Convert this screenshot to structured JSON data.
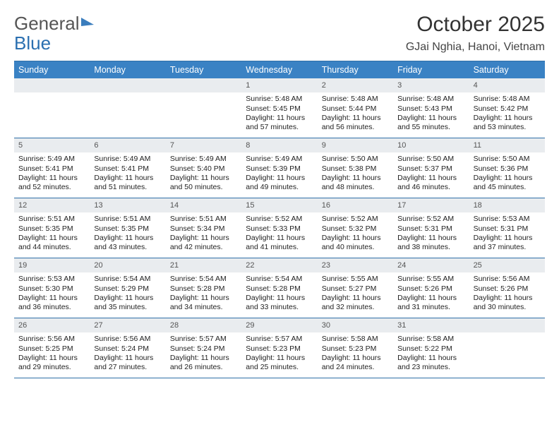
{
  "logo": {
    "text1": "General",
    "text2": "Blue"
  },
  "title": "October 2025",
  "location": "GJai Nghia, Hanoi, Vietnam",
  "colors": {
    "header_bar": "#3a82c4",
    "rule": "#2f6fa8",
    "daynum_bg": "#e9ecef",
    "text": "#222222",
    "logo_gray": "#555555",
    "logo_blue": "#2a6fb0"
  },
  "fonts": {
    "body_pt": 10.5,
    "header_pt": 12.5,
    "title_pt": 30,
    "location_pt": 16
  },
  "day_headers": [
    "Sunday",
    "Monday",
    "Tuesday",
    "Wednesday",
    "Thursday",
    "Friday",
    "Saturday"
  ],
  "weeks": [
    [
      {
        "day": "",
        "empty": true
      },
      {
        "day": "",
        "empty": true
      },
      {
        "day": "",
        "empty": true
      },
      {
        "day": "1",
        "sunrise": "Sunrise: 5:48 AM",
        "sunset": "Sunset: 5:45 PM",
        "daylight": "Daylight: 11 hours and 57 minutes."
      },
      {
        "day": "2",
        "sunrise": "Sunrise: 5:48 AM",
        "sunset": "Sunset: 5:44 PM",
        "daylight": "Daylight: 11 hours and 56 minutes."
      },
      {
        "day": "3",
        "sunrise": "Sunrise: 5:48 AM",
        "sunset": "Sunset: 5:43 PM",
        "daylight": "Daylight: 11 hours and 55 minutes."
      },
      {
        "day": "4",
        "sunrise": "Sunrise: 5:48 AM",
        "sunset": "Sunset: 5:42 PM",
        "daylight": "Daylight: 11 hours and 53 minutes."
      }
    ],
    [
      {
        "day": "5",
        "sunrise": "Sunrise: 5:49 AM",
        "sunset": "Sunset: 5:41 PM",
        "daylight": "Daylight: 11 hours and 52 minutes."
      },
      {
        "day": "6",
        "sunrise": "Sunrise: 5:49 AM",
        "sunset": "Sunset: 5:41 PM",
        "daylight": "Daylight: 11 hours and 51 minutes."
      },
      {
        "day": "7",
        "sunrise": "Sunrise: 5:49 AM",
        "sunset": "Sunset: 5:40 PM",
        "daylight": "Daylight: 11 hours and 50 minutes."
      },
      {
        "day": "8",
        "sunrise": "Sunrise: 5:49 AM",
        "sunset": "Sunset: 5:39 PM",
        "daylight": "Daylight: 11 hours and 49 minutes."
      },
      {
        "day": "9",
        "sunrise": "Sunrise: 5:50 AM",
        "sunset": "Sunset: 5:38 PM",
        "daylight": "Daylight: 11 hours and 48 minutes."
      },
      {
        "day": "10",
        "sunrise": "Sunrise: 5:50 AM",
        "sunset": "Sunset: 5:37 PM",
        "daylight": "Daylight: 11 hours and 46 minutes."
      },
      {
        "day": "11",
        "sunrise": "Sunrise: 5:50 AM",
        "sunset": "Sunset: 5:36 PM",
        "daylight": "Daylight: 11 hours and 45 minutes."
      }
    ],
    [
      {
        "day": "12",
        "sunrise": "Sunrise: 5:51 AM",
        "sunset": "Sunset: 5:35 PM",
        "daylight": "Daylight: 11 hours and 44 minutes."
      },
      {
        "day": "13",
        "sunrise": "Sunrise: 5:51 AM",
        "sunset": "Sunset: 5:35 PM",
        "daylight": "Daylight: 11 hours and 43 minutes."
      },
      {
        "day": "14",
        "sunrise": "Sunrise: 5:51 AM",
        "sunset": "Sunset: 5:34 PM",
        "daylight": "Daylight: 11 hours and 42 minutes."
      },
      {
        "day": "15",
        "sunrise": "Sunrise: 5:52 AM",
        "sunset": "Sunset: 5:33 PM",
        "daylight": "Daylight: 11 hours and 41 minutes."
      },
      {
        "day": "16",
        "sunrise": "Sunrise: 5:52 AM",
        "sunset": "Sunset: 5:32 PM",
        "daylight": "Daylight: 11 hours and 40 minutes."
      },
      {
        "day": "17",
        "sunrise": "Sunrise: 5:52 AM",
        "sunset": "Sunset: 5:31 PM",
        "daylight": "Daylight: 11 hours and 38 minutes."
      },
      {
        "day": "18",
        "sunrise": "Sunrise: 5:53 AM",
        "sunset": "Sunset: 5:31 PM",
        "daylight": "Daylight: 11 hours and 37 minutes."
      }
    ],
    [
      {
        "day": "19",
        "sunrise": "Sunrise: 5:53 AM",
        "sunset": "Sunset: 5:30 PM",
        "daylight": "Daylight: 11 hours and 36 minutes."
      },
      {
        "day": "20",
        "sunrise": "Sunrise: 5:54 AM",
        "sunset": "Sunset: 5:29 PM",
        "daylight": "Daylight: 11 hours and 35 minutes."
      },
      {
        "day": "21",
        "sunrise": "Sunrise: 5:54 AM",
        "sunset": "Sunset: 5:28 PM",
        "daylight": "Daylight: 11 hours and 34 minutes."
      },
      {
        "day": "22",
        "sunrise": "Sunrise: 5:54 AM",
        "sunset": "Sunset: 5:28 PM",
        "daylight": "Daylight: 11 hours and 33 minutes."
      },
      {
        "day": "23",
        "sunrise": "Sunrise: 5:55 AM",
        "sunset": "Sunset: 5:27 PM",
        "daylight": "Daylight: 11 hours and 32 minutes."
      },
      {
        "day": "24",
        "sunrise": "Sunrise: 5:55 AM",
        "sunset": "Sunset: 5:26 PM",
        "daylight": "Daylight: 11 hours and 31 minutes."
      },
      {
        "day": "25",
        "sunrise": "Sunrise: 5:56 AM",
        "sunset": "Sunset: 5:26 PM",
        "daylight": "Daylight: 11 hours and 30 minutes."
      }
    ],
    [
      {
        "day": "26",
        "sunrise": "Sunrise: 5:56 AM",
        "sunset": "Sunset: 5:25 PM",
        "daylight": "Daylight: 11 hours and 29 minutes."
      },
      {
        "day": "27",
        "sunrise": "Sunrise: 5:56 AM",
        "sunset": "Sunset: 5:24 PM",
        "daylight": "Daylight: 11 hours and 27 minutes."
      },
      {
        "day": "28",
        "sunrise": "Sunrise: 5:57 AM",
        "sunset": "Sunset: 5:24 PM",
        "daylight": "Daylight: 11 hours and 26 minutes."
      },
      {
        "day": "29",
        "sunrise": "Sunrise: 5:57 AM",
        "sunset": "Sunset: 5:23 PM",
        "daylight": "Daylight: 11 hours and 25 minutes."
      },
      {
        "day": "30",
        "sunrise": "Sunrise: 5:58 AM",
        "sunset": "Sunset: 5:23 PM",
        "daylight": "Daylight: 11 hours and 24 minutes."
      },
      {
        "day": "31",
        "sunrise": "Sunrise: 5:58 AM",
        "sunset": "Sunset: 5:22 PM",
        "daylight": "Daylight: 11 hours and 23 minutes."
      },
      {
        "day": "",
        "empty": true
      }
    ]
  ]
}
